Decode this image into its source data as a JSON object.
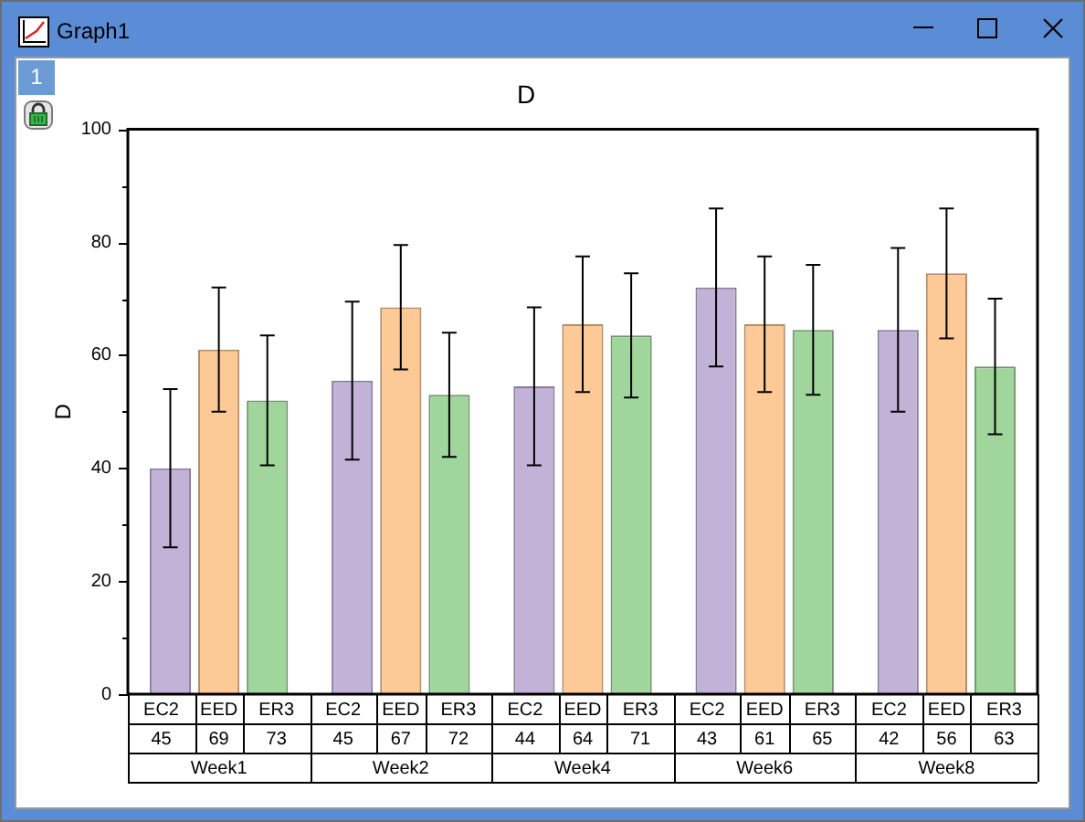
{
  "chart_data": {
    "type": "bar",
    "title": "D",
    "ylabel": "D",
    "annotations": [
      "Graph1",
      "1",
      "45",
      "69",
      "73",
      "45",
      "67",
      "72",
      "44",
      "64",
      "71",
      "43",
      "61",
      "65",
      "42",
      "56",
      "63"
    ],
    "categories": [
      "Week1",
      "Week2",
      "Week4",
      "Week6",
      "Week8"
    ],
    "series": [
      {
        "name": "EC2",
        "color": "#c2b2d7",
        "values": [
          40,
          55.5,
          54.5,
          72,
          64.5
        ],
        "errors": [
          14,
          14,
          14,
          14,
          14.5
        ]
      },
      {
        "name": "EED",
        "color": "#fdc997",
        "values": [
          61,
          68.5,
          65.5,
          65.5,
          74.5
        ],
        "errors": [
          11,
          11,
          12,
          12,
          11.5
        ]
      },
      {
        "name": "ER3",
        "color": "#a0d69b",
        "values": [
          52,
          53,
          63.5,
          64.5,
          58
        ],
        "errors": [
          11.5,
          11,
          11,
          11.5,
          12
        ]
      }
    ],
    "ylim": [
      0,
      100
    ],
    "yticks": [
      0,
      {
        "value": 10,
        "label": null
      },
      20,
      {
        "value": 30,
        "label": null
      },
      40,
      {
        "value": 50,
        "label": null
      },
      60,
      {
        "value": 70,
        "label": null
      },
      80,
      {
        "value": 90,
        "label": null
      },
      100
    ],
    "grid": false,
    "legend": false
  }
}
